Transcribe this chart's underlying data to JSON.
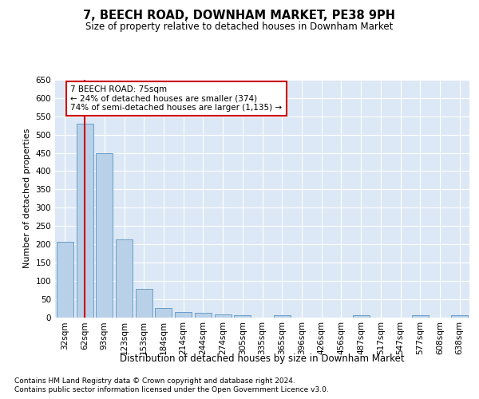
{
  "title": "7, BEECH ROAD, DOWNHAM MARKET, PE38 9PH",
  "subtitle": "Size of property relative to detached houses in Downham Market",
  "xlabel": "Distribution of detached houses by size in Downham Market",
  "ylabel": "Number of detached properties",
  "footnote1": "Contains HM Land Registry data © Crown copyright and database right 2024.",
  "footnote2": "Contains public sector information licensed under the Open Government Licence v3.0.",
  "categories": [
    "32sqm",
    "62sqm",
    "93sqm",
    "123sqm",
    "153sqm",
    "184sqm",
    "214sqm",
    "244sqm",
    "274sqm",
    "305sqm",
    "335sqm",
    "365sqm",
    "396sqm",
    "426sqm",
    "456sqm",
    "487sqm",
    "517sqm",
    "547sqm",
    "577sqm",
    "608sqm",
    "638sqm"
  ],
  "values": [
    207,
    530,
    450,
    212,
    77,
    25,
    15,
    11,
    8,
    5,
    0,
    5,
    0,
    0,
    0,
    5,
    0,
    0,
    5,
    0,
    5
  ],
  "bar_color": "#b8d0e8",
  "bar_edge_color": "#6a9fc8",
  "plot_bg_color": "#dce8f5",
  "vline_color": "#cc0000",
  "vline_x": 1.0,
  "annotation_text": "7 BEECH ROAD: 75sqm\n← 24% of detached houses are smaller (374)\n74% of semi-detached houses are larger (1,135) →",
  "annotation_box_facecolor": "#ffffff",
  "annotation_box_edgecolor": "#cc0000",
  "ylim": [
    0,
    650
  ],
  "yticks": [
    0,
    50,
    100,
    150,
    200,
    250,
    300,
    350,
    400,
    450,
    500,
    550,
    600,
    650
  ],
  "title_fontsize": 10.5,
  "subtitle_fontsize": 8.5,
  "ylabel_fontsize": 8,
  "xlabel_fontsize": 8.5,
  "tick_fontsize": 7.5,
  "footnote_fontsize": 6.5
}
